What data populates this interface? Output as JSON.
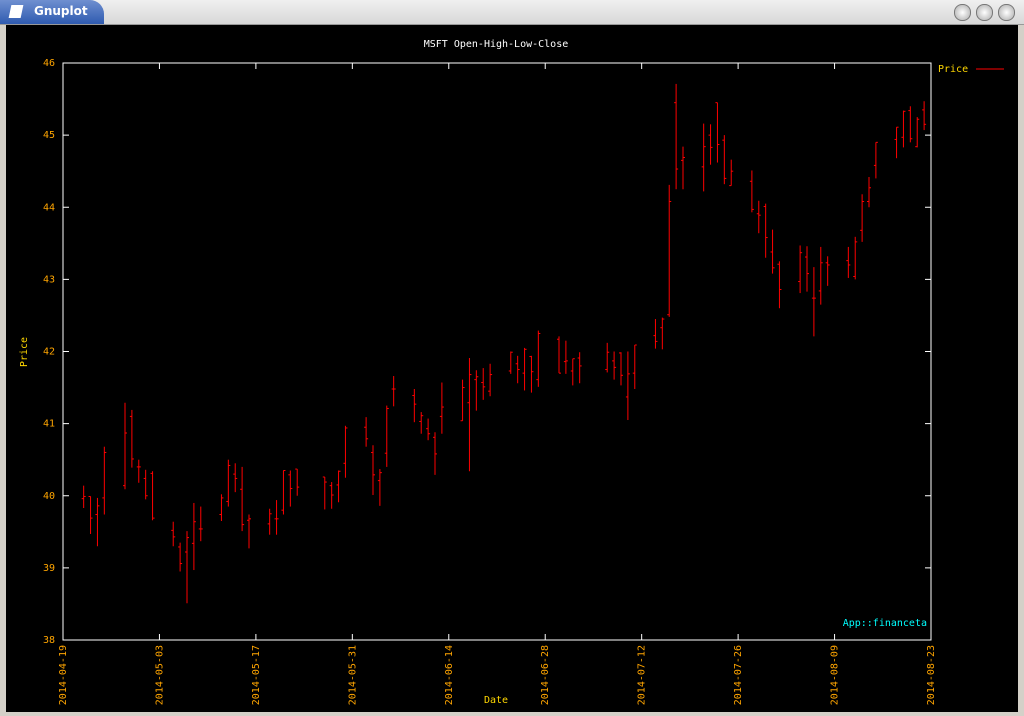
{
  "window": {
    "title": "Gnuplot"
  },
  "chart_data": {
    "type": "ohlc",
    "title": "MSFT Open-High-Low-Close",
    "xlabel": "Date",
    "ylabel": "Price",
    "annotation": "App::financeta",
    "legend": "top-right",
    "grid": false,
    "x": [
      "2014-04-22",
      "2014-04-23",
      "2014-04-24",
      "2014-04-25",
      "2014-04-28",
      "2014-04-29",
      "2014-04-30",
      "2014-05-01",
      "2014-05-02",
      "2014-05-05",
      "2014-05-06",
      "2014-05-07",
      "2014-05-08",
      "2014-05-09",
      "2014-05-12",
      "2014-05-13",
      "2014-05-14",
      "2014-05-15",
      "2014-05-16",
      "2014-05-19",
      "2014-05-20",
      "2014-05-21",
      "2014-05-22",
      "2014-05-23",
      "2014-05-27",
      "2014-05-28",
      "2014-05-29",
      "2014-05-30",
      "2014-06-02",
      "2014-06-03",
      "2014-06-04",
      "2014-06-05",
      "2014-06-06",
      "2014-06-09",
      "2014-06-10",
      "2014-06-11",
      "2014-06-12",
      "2014-06-13",
      "2014-06-16",
      "2014-06-17",
      "2014-06-18",
      "2014-06-19",
      "2014-06-20",
      "2014-06-23",
      "2014-06-24",
      "2014-06-25",
      "2014-06-26",
      "2014-06-27",
      "2014-06-30",
      "2014-07-01",
      "2014-07-02",
      "2014-07-03",
      "2014-07-07",
      "2014-07-08",
      "2014-07-09",
      "2014-07-10",
      "2014-07-11",
      "2014-07-14",
      "2014-07-15",
      "2014-07-16",
      "2014-07-17",
      "2014-07-18",
      "2014-07-21",
      "2014-07-22",
      "2014-07-23",
      "2014-07-24",
      "2014-07-25",
      "2014-07-28",
      "2014-07-29",
      "2014-07-30",
      "2014-07-31",
      "2014-08-01",
      "2014-08-04",
      "2014-08-05",
      "2014-08-06",
      "2014-08-07",
      "2014-08-08",
      "2014-08-11",
      "2014-08-12",
      "2014-08-13",
      "2014-08-14",
      "2014-08-15",
      "2014-08-18",
      "2014-08-19",
      "2014-08-20",
      "2014-08-21",
      "2014-08-22"
    ],
    "series": [
      {
        "name": "Price",
        "color": "#ff0000",
        "open": [
          39.96,
          39.99,
          39.74,
          39.97,
          40.14,
          41.1,
          40.4,
          40.24,
          40.31,
          39.52,
          39.29,
          39.22,
          39.34,
          39.54,
          39.74,
          39.92,
          40.3,
          40.09,
          39.66,
          39.61,
          39.68,
          39.8,
          40.29,
          40.37,
          40.26,
          40.14,
          40.15,
          40.45,
          40.95,
          40.6,
          40.21,
          40.59,
          41.48,
          41.39,
          41.03,
          40.93,
          40.81,
          41.1,
          41.04,
          41.29,
          41.61,
          41.57,
          41.45,
          41.73,
          41.83,
          41.7,
          41.93,
          41.61,
          42.17,
          41.86,
          41.73,
          41.91,
          41.75,
          41.87,
          41.98,
          41.37,
          41.7,
          42.22,
          42.33,
          42.51,
          45.45,
          44.65,
          44.56,
          45.0,
          45.45,
          44.93,
          44.3,
          44.36,
          43.91,
          44.01,
          43.38,
          43.21,
          42.97,
          43.31,
          42.74,
          42.84,
          43.23,
          43.26,
          43.04,
          43.68,
          44.08,
          44.58,
          44.94,
          44.97,
          45.34,
          44.84,
          45.35
        ],
        "high": [
          40.14,
          39.99,
          39.97,
          40.68,
          41.29,
          41.19,
          40.5,
          40.36,
          40.34,
          39.64,
          39.35,
          39.51,
          39.9,
          39.85,
          40.02,
          40.5,
          40.45,
          40.4,
          39.74,
          39.82,
          39.94,
          40.35,
          40.35,
          40.37,
          40.26,
          40.19,
          40.35,
          40.97,
          41.09,
          40.7,
          40.37,
          41.25,
          41.66,
          41.48,
          41.16,
          41.07,
          40.88,
          41.57,
          41.61,
          41.91,
          41.74,
          41.77,
          41.83,
          42.0,
          41.94,
          42.05,
          41.94,
          42.29,
          42.21,
          42.15,
          41.9,
          41.99,
          42.12,
          42.0,
          41.99,
          42.0,
          42.09,
          42.45,
          42.47,
          44.31,
          45.71,
          44.84,
          45.16,
          45.15,
          45.45,
          45.0,
          44.66,
          44.51,
          44.09,
          44.05,
          43.69,
          43.25,
          43.47,
          43.46,
          43.17,
          43.45,
          43.32,
          43.45,
          43.59,
          44.18,
          44.42,
          44.9,
          45.11,
          45.34,
          45.4,
          45.25,
          45.47
        ],
        "low": [
          39.83,
          39.47,
          39.3,
          39.74,
          40.09,
          40.39,
          40.18,
          39.95,
          39.66,
          39.3,
          38.95,
          38.51,
          38.97,
          39.37,
          39.65,
          39.85,
          40.05,
          39.51,
          39.27,
          39.46,
          39.46,
          39.74,
          39.85,
          40.0,
          39.81,
          39.82,
          39.91,
          40.25,
          40.68,
          40.01,
          39.86,
          40.4,
          41.24,
          41.02,
          40.86,
          40.77,
          40.29,
          40.86,
          41.04,
          40.34,
          41.18,
          41.33,
          41.38,
          41.69,
          41.56,
          41.46,
          41.43,
          41.51,
          41.7,
          41.69,
          41.53,
          41.56,
          41.71,
          41.61,
          41.53,
          41.05,
          41.48,
          42.04,
          42.03,
          42.48,
          44.25,
          44.25,
          44.22,
          44.59,
          44.62,
          44.32,
          44.3,
          43.93,
          43.64,
          43.3,
          43.08,
          42.6,
          42.81,
          42.83,
          42.21,
          42.65,
          42.91,
          43.02,
          43.0,
          43.52,
          44.0,
          44.4,
          44.68,
          44.83,
          44.9,
          44.83,
          45.07
        ],
        "close": [
          39.99,
          39.69,
          39.86,
          40.6,
          40.87,
          40.51,
          40.4,
          40.0,
          39.69,
          39.43,
          39.06,
          39.42,
          39.64,
          39.54,
          39.97,
          40.42,
          40.24,
          39.6,
          39.68,
          39.75,
          39.68,
          40.35,
          40.1,
          40.12,
          40.19,
          40.01,
          40.34,
          40.94,
          40.79,
          40.29,
          40.32,
          41.21,
          41.48,
          41.27,
          41.11,
          40.86,
          40.58,
          41.23,
          41.5,
          41.68,
          41.65,
          41.51,
          41.68,
          41.99,
          41.75,
          42.03,
          41.72,
          42.25,
          41.7,
          41.87,
          41.9,
          41.8,
          41.99,
          41.78,
          41.67,
          41.69,
          42.09,
          42.14,
          42.45,
          44.08,
          44.53,
          44.69,
          44.84,
          44.83,
          44.87,
          44.4,
          44.5,
          43.97,
          43.89,
          43.58,
          43.16,
          42.86,
          43.37,
          43.08,
          42.74,
          43.23,
          43.2,
          43.2,
          43.52,
          44.08,
          44.27,
          44.9,
          45.11,
          45.33,
          44.95,
          45.22,
          45.15
        ]
      }
    ],
    "xlim": [
      "2014-04-19",
      "2014-08-23"
    ],
    "xticks": [
      "2014-04-19",
      "2014-05-03",
      "2014-05-17",
      "2014-05-31",
      "2014-06-14",
      "2014-06-28",
      "2014-07-12",
      "2014-07-26",
      "2014-08-09",
      "2014-08-23"
    ],
    "ylim": [
      38,
      46
    ],
    "yticks": [
      38,
      39,
      40,
      41,
      42,
      43,
      44,
      45,
      46
    ]
  }
}
